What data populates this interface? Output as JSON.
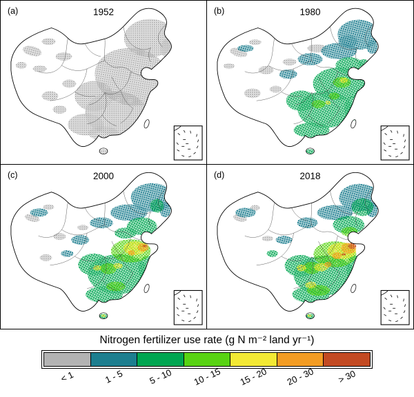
{
  "figure": {
    "panels": [
      {
        "tag": "(a)",
        "year": "1952"
      },
      {
        "tag": "(b)",
        "year": "1980"
      },
      {
        "tag": "(c)",
        "year": "2000"
      },
      {
        "tag": "(d)",
        "year": "2018"
      }
    ],
    "legend": {
      "title": "Nitrogen fertilizer use rate (g N m⁻² land yr⁻¹)",
      "classes": [
        {
          "label": "< 1",
          "color": "#b3b3b3"
        },
        {
          "label": "1 - 5",
          "color": "#1d7e8f"
        },
        {
          "label": "5 - 10",
          "color": "#00a651"
        },
        {
          "label": "10 - 15",
          "color": "#58d313"
        },
        {
          "label": "15 - 20",
          "color": "#f3e934"
        },
        {
          "label": "20 - 30",
          "color": "#f39c23"
        },
        {
          "label": "> 30",
          "color": "#c34a22"
        }
      ]
    }
  },
  "chart_data": {
    "type": "map",
    "title": "Nitrogen fertilizer use rate (g N m⁻² land yr⁻¹)",
    "region": "China",
    "panel_years": [
      "1952",
      "1980",
      "2000",
      "2018"
    ],
    "classes": [
      "< 1",
      "1 - 5",
      "5 - 10",
      "10 - 15",
      "15 - 20",
      "20 - 30",
      "> 30"
    ],
    "class_colors": [
      "#b3b3b3",
      "#1d7e8f",
      "#00a651",
      "#58d313",
      "#f3e934",
      "#f39c23",
      "#c34a22"
    ],
    "legend_position": "bottom"
  }
}
